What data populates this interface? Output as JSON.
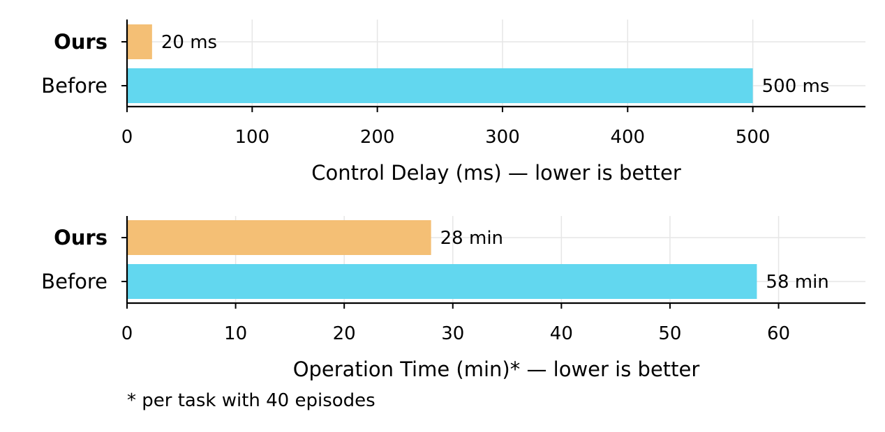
{
  "chart_data": [
    {
      "type": "bar",
      "orientation": "horizontal",
      "categories": [
        "Ours",
        "Before"
      ],
      "bold_categories": [
        "Ours"
      ],
      "values": [
        20,
        500
      ],
      "data_labels": [
        "20 ms",
        "500 ms"
      ],
      "colors": [
        "#f4bf75",
        "#62d7ef"
      ],
      "xlabel": "Control Delay (ms) — lower is better",
      "xlim": [
        0,
        590
      ],
      "xticks": [
        0,
        100,
        200,
        300,
        400,
        500
      ],
      "grid": true
    },
    {
      "type": "bar",
      "orientation": "horizontal",
      "categories": [
        "Ours",
        "Before"
      ],
      "bold_categories": [
        "Ours"
      ],
      "values": [
        28,
        58
      ],
      "data_labels": [
        "28 min",
        "58 min"
      ],
      "colors": [
        "#f4bf75",
        "#62d7ef"
      ],
      "xlabel": "Operation Time (min)* — lower is better",
      "xlim": [
        0,
        68
      ],
      "xticks": [
        0,
        10,
        20,
        30,
        40,
        50,
        60
      ],
      "grid": true
    }
  ],
  "footnote": "* per task with 40 episodes"
}
